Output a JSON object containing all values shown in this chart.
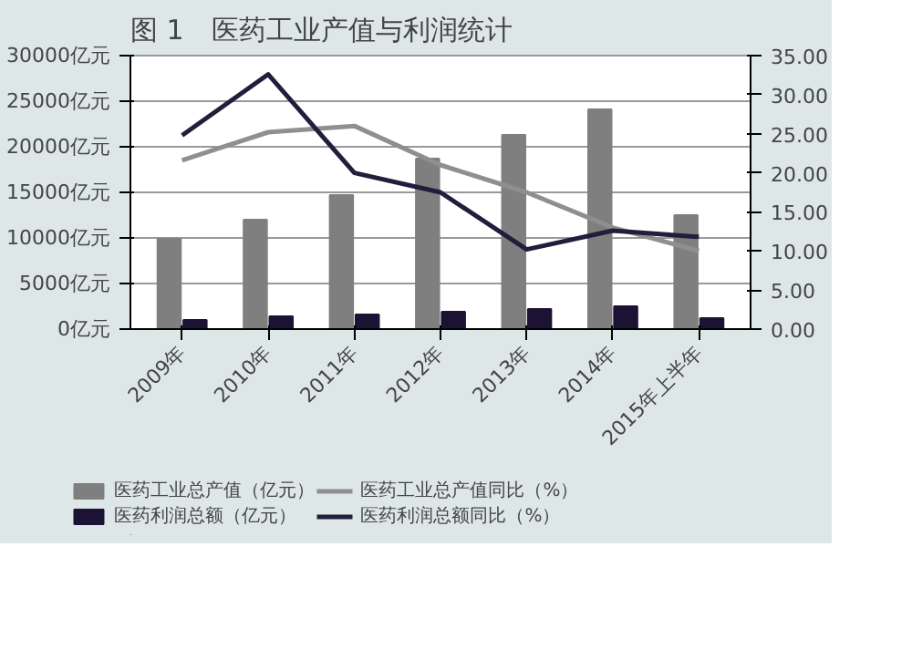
{
  "chart_data": {
    "type": "bar",
    "title": "图 1　医药工业产值与利润统计",
    "categories": [
      "2009年",
      "2010年",
      "2011年",
      "2012年",
      "2013年",
      "2014年",
      "2015年上半年"
    ],
    "series": [
      {
        "name": "医药工业总产值（亿元）",
        "color": "#7f7f7f",
        "values": [
          9900,
          12000,
          14700,
          18700,
          21300,
          24100,
          12500
        ]
      },
      {
        "name": "医药利润总额（亿元）",
        "color": "#1c1233",
        "values": [
          1000,
          1400,
          1600,
          1900,
          2200,
          2500,
          1200
        ]
      },
      {
        "name": "医药工业总产值同比（%）",
        "type": "line",
        "axis": "y2",
        "color": "#8f8f8f",
        "values": [
          21.6,
          25.2,
          26.0,
          21.0,
          17.5,
          13.0,
          10.0
        ]
      },
      {
        "name": "医药利润总额同比（%）",
        "type": "line",
        "axis": "y2",
        "color": "#1f1f3d",
        "values": [
          24.8,
          32.6,
          20.0,
          17.5,
          10.2,
          12.6,
          11.8
        ]
      }
    ],
    "ylim": [
      0,
      30000
    ],
    "yticks": [
      {
        "value": 0,
        "label": "0亿元"
      },
      {
        "value": 5000,
        "label": "5000亿元"
      },
      {
        "value": 10000,
        "label": "10000亿元"
      },
      {
        "value": 15000,
        "label": "15000亿元"
      },
      {
        "value": 20000,
        "label": "20000亿元"
      },
      {
        "value": 25000,
        "label": "25000亿元"
      },
      {
        "value": 30000,
        "label": "30000亿元"
      }
    ],
    "y2lim": [
      0,
      35
    ],
    "y2ticks": [
      {
        "value": 0,
        "label": "0.00"
      },
      {
        "value": 5,
        "label": "5.00"
      },
      {
        "value": 10,
        "label": "10.00"
      },
      {
        "value": 15,
        "label": "15.00"
      },
      {
        "value": 20,
        "label": "20.00"
      },
      {
        "value": 25,
        "label": "25.00"
      },
      {
        "value": 30,
        "label": "30.00"
      },
      {
        "value": 35,
        "label": "35.00"
      }
    ],
    "grid": "y",
    "legend": "bottom"
  }
}
